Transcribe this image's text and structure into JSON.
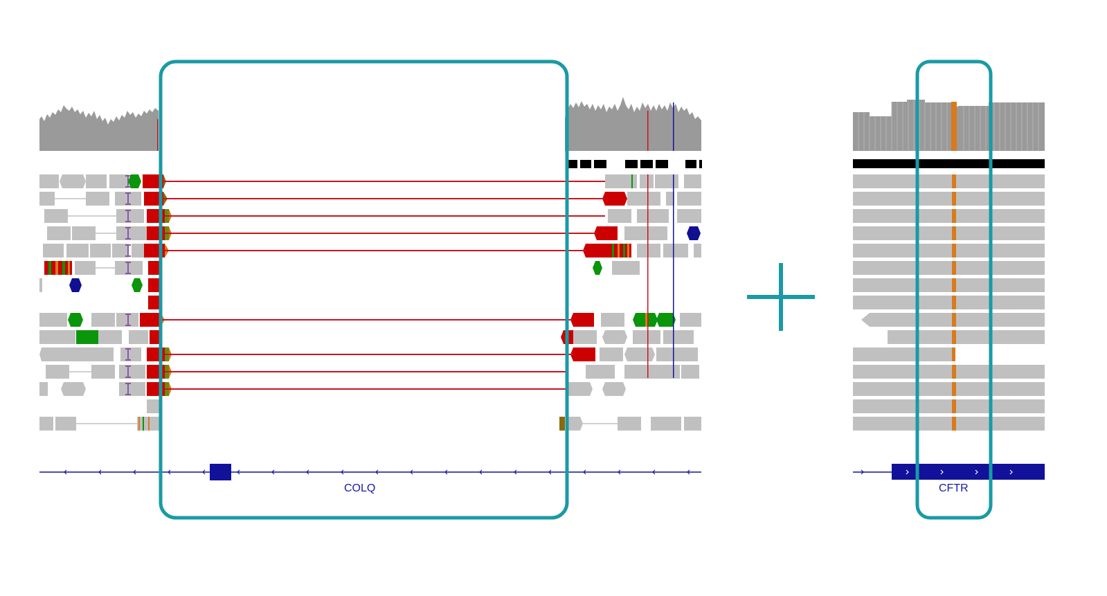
{
  "panels": {
    "left": {
      "gene_name": "COLQ",
      "strand": "minus",
      "highlight_color": "#1a9aa4"
    },
    "right": {
      "gene_name": "CFTR",
      "strand": "plus",
      "highlight_color": "#1a9aa4"
    }
  },
  "combine_symbol": "plus-icon",
  "colors": {
    "coverage": "#9a9a9a",
    "read": "#c0c0c0",
    "split_junction": "#c8141e",
    "soft_clip": "#cc0000",
    "mismatch_orange": "#d97a1c",
    "gene_model": "#11119a",
    "insertion": "#8a55a8",
    "green_read": "#0a960a",
    "navy_read": "#101090",
    "teal_box": "#1a9aa4"
  }
}
